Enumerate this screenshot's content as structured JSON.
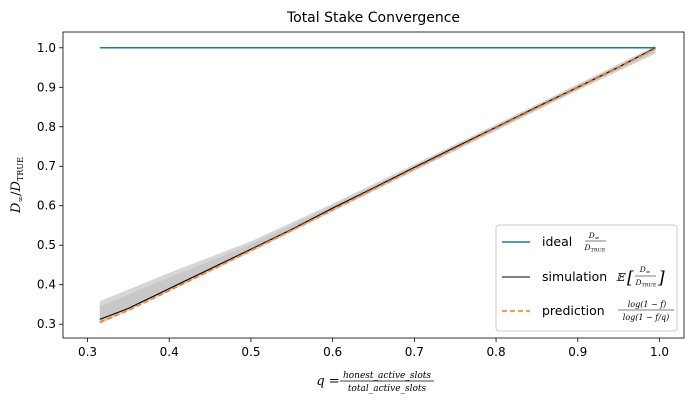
{
  "chart_data": {
    "type": "line",
    "title": "Total Stake Convergence",
    "xlabel": {
      "prefix": "q =",
      "numerator": "honest_active_slots",
      "denominator": "total_active_slots"
    },
    "ylabel": {
      "main": "D",
      "sub1": "∞",
      "slash": "/",
      "main2": "D",
      "sub2": "TRUE"
    },
    "xlim": [
      0.27,
      1.03
    ],
    "ylim": [
      0.265,
      1.04
    ],
    "xticks": [
      "0.3",
      "0.4",
      "0.5",
      "0.6",
      "0.7",
      "0.8",
      "0.9",
      "1.0"
    ],
    "yticks": [
      "0.3",
      "0.4",
      "0.5",
      "0.6",
      "0.7",
      "0.8",
      "0.9",
      "1.0"
    ],
    "grid": false,
    "legend_position": "lower-right",
    "series": [
      {
        "name": "ideal",
        "legend_math": "D∞ / DTRUE",
        "color": "#1f77b4",
        "style": "solid",
        "x": [
          0.315,
          0.995
        ],
        "y": [
          1.0,
          1.0
        ]
      },
      {
        "name": "simulation",
        "legend_math": "𝔼[ D∞ / DTRUE ]",
        "color": "#000000",
        "style": "solid",
        "x": [
          0.315,
          0.35,
          0.4,
          0.45,
          0.5,
          0.55,
          0.6,
          0.65,
          0.7,
          0.75,
          0.8,
          0.85,
          0.9,
          0.95,
          0.995
        ],
        "y": [
          0.312,
          0.34,
          0.39,
          0.44,
          0.49,
          0.54,
          0.594,
          0.645,
          0.697,
          0.748,
          0.799,
          0.85,
          0.9,
          0.951,
          1.0
        ]
      },
      {
        "name": "prediction",
        "legend_math": "log(1 − f) / log(1 − f/q)",
        "color": "#ff7f0e",
        "style": "dashed",
        "x": [
          0.315,
          0.35,
          0.4,
          0.45,
          0.5,
          0.55,
          0.6,
          0.65,
          0.7,
          0.75,
          0.8,
          0.85,
          0.9,
          0.95,
          0.995
        ],
        "y": [
          0.305,
          0.335,
          0.385,
          0.436,
          0.487,
          0.538,
          0.59,
          0.642,
          0.694,
          0.745,
          0.797,
          0.848,
          0.899,
          0.95,
          0.998
        ]
      }
    ],
    "bands": [
      {
        "color": "#c8c8c8",
        "opacity": 0.75,
        "x": [
          0.315,
          0.4,
          0.5,
          0.6,
          0.7,
          0.8,
          0.9,
          0.995
        ],
        "lower": [
          0.3,
          0.382,
          0.482,
          0.585,
          0.688,
          0.79,
          0.892,
          0.985
        ],
        "upper": [
          0.358,
          0.43,
          0.51,
          0.605,
          0.705,
          0.806,
          0.908,
          1.005
        ]
      },
      {
        "color": "#bdbdbd",
        "opacity": 0.55,
        "x": [
          0.315,
          0.4,
          0.5,
          0.6,
          0.7,
          0.8,
          0.9,
          0.995
        ],
        "lower": [
          0.305,
          0.386,
          0.486,
          0.588,
          0.691,
          0.793,
          0.895,
          0.99
        ],
        "upper": [
          0.345,
          0.418,
          0.502,
          0.6,
          0.701,
          0.803,
          0.905,
          1.002
        ]
      }
    ]
  }
}
